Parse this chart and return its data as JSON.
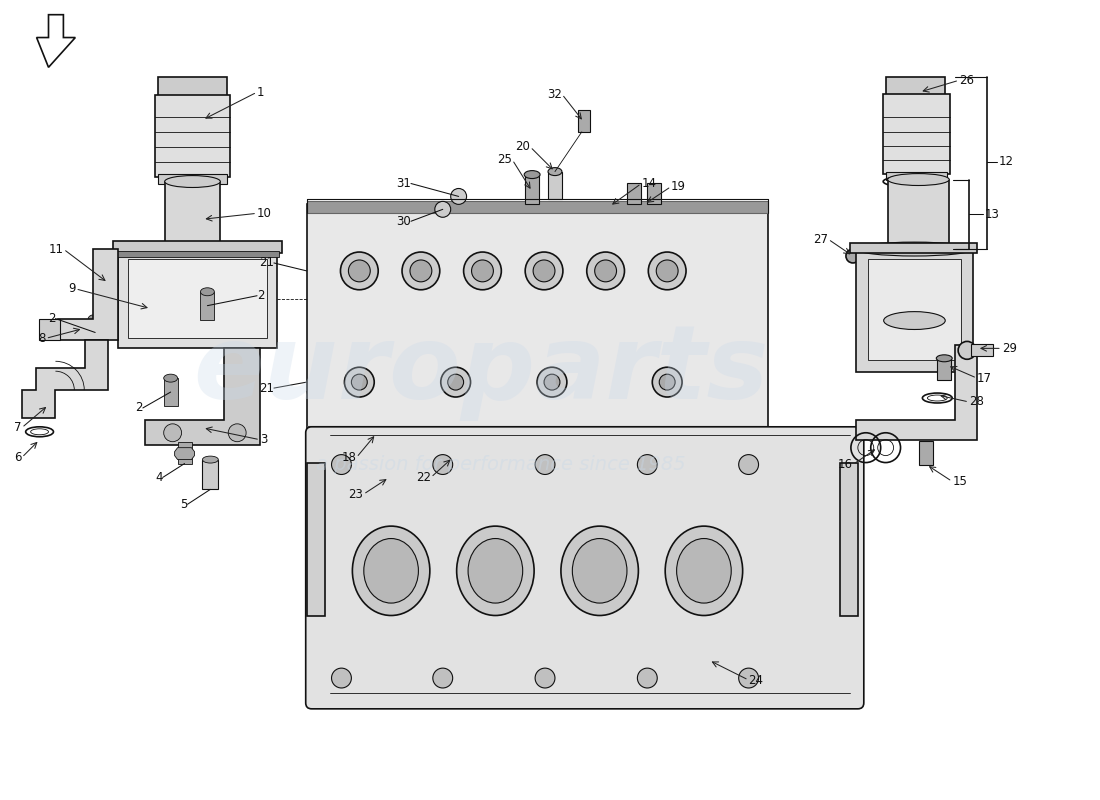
{
  "bg_color": "#ffffff",
  "line_color": "#111111",
  "watermark1": "europarts",
  "watermark2": "a passion for performance since 1985",
  "wm_color1": "#c8d8e8",
  "wm_color2": "#c8d8e8",
  "arrow_color": "#222222",
  "gray_light": "#e0e0e0",
  "gray_mid": "#cccccc",
  "gray_dark": "#aaaaaa",
  "gray_fill": "#d8d8d8"
}
